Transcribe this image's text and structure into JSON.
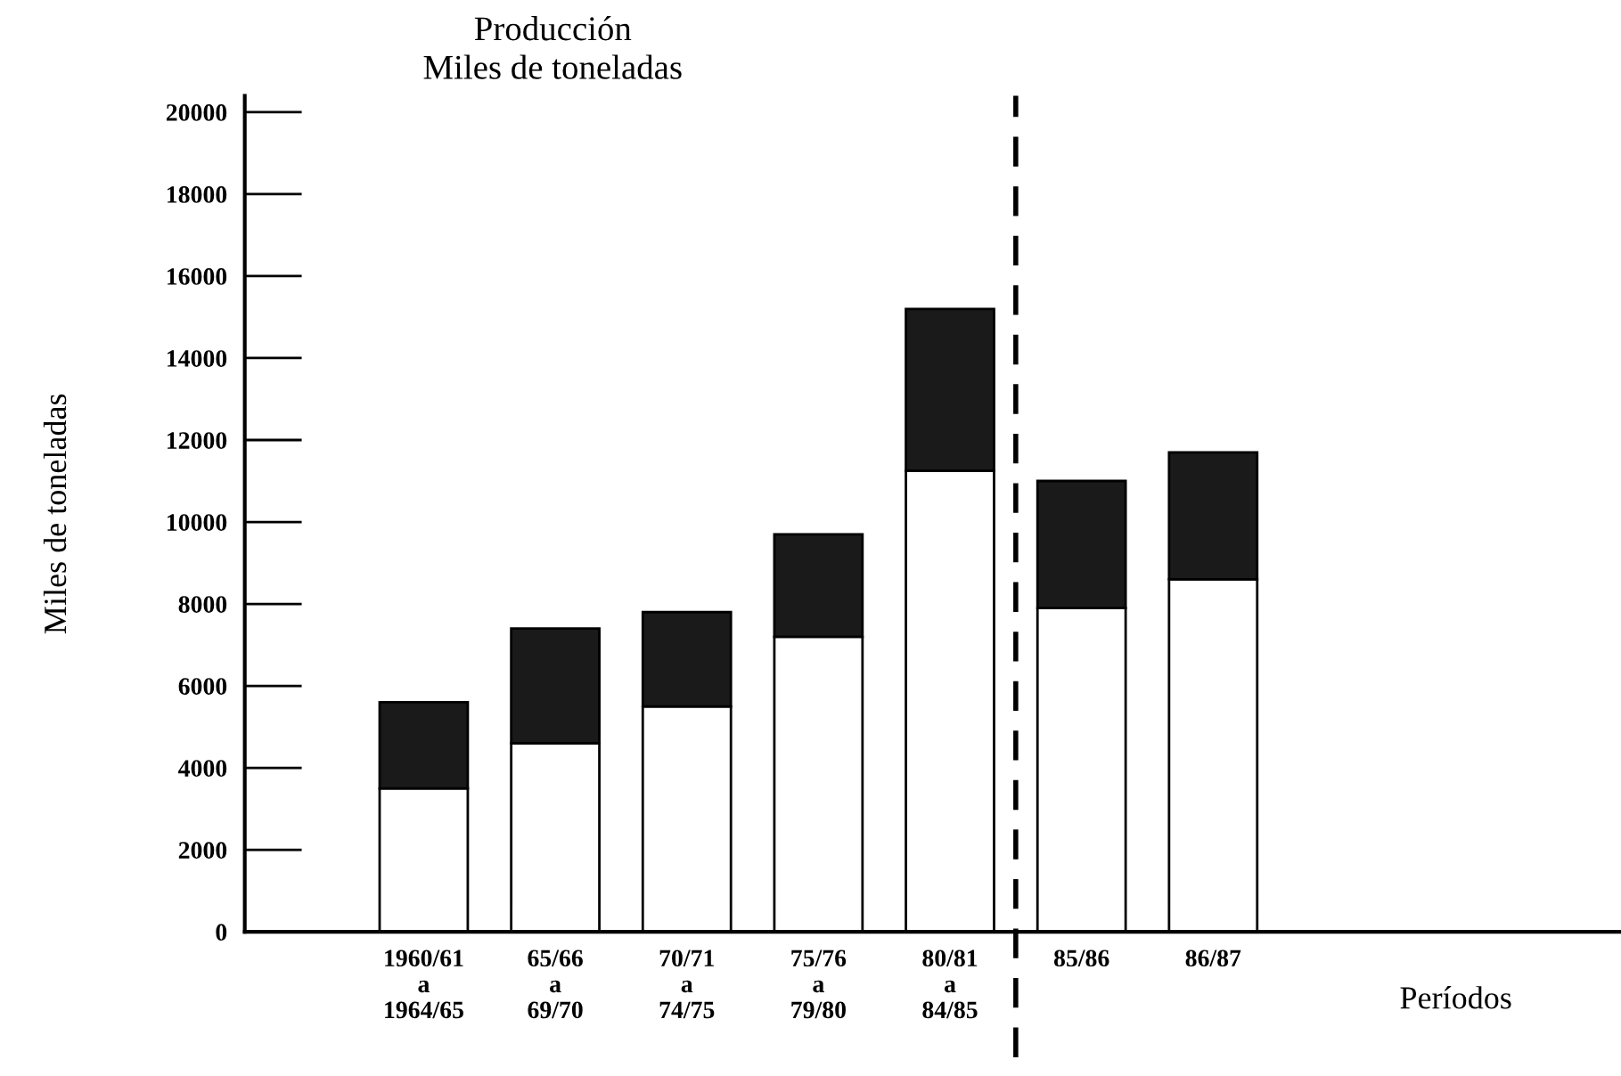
{
  "chart_data": {
    "type": "bar",
    "title": "Producción\nMiles de toneladas",
    "xlabel": "Períodos",
    "ylabel": "Miles de toneladas",
    "categories": [
      "1960/61\na\n1964/65",
      "65/66\na\n69/70",
      "70/71\na\n74/75",
      "75/76\na\n79/80",
      "80/81\na\n84/85",
      "85/86",
      "86/87"
    ],
    "stacked": true,
    "series": [
      {
        "color": "#ffffff",
        "values": [
          3500,
          4600,
          5500,
          7200,
          11250,
          7900,
          8600
        ]
      },
      {
        "color": "#1a1a1a",
        "values": [
          2100,
          2800,
          2300,
          2500,
          3950,
          3100,
          3100
        ]
      }
    ],
    "ylim": [
      0,
      20400
    ],
    "yticks": [
      0,
      2000,
      4000,
      6000,
      8000,
      10000,
      12000,
      14000,
      16000,
      18000,
      20000
    ],
    "grid": false,
    "legend": false
  }
}
